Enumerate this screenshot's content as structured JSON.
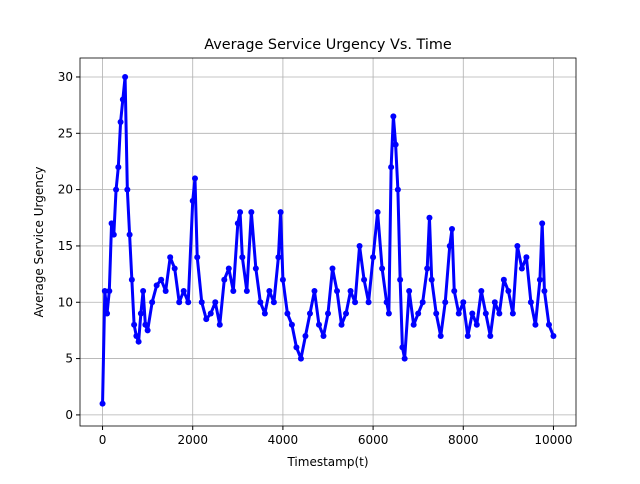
{
  "chart_data": {
    "type": "line",
    "title": "Average Service Urgency Vs. Time",
    "x_label": "Timestamp(t)",
    "y_label": "Average Service Urgency",
    "x": [
      0,
      50,
      100,
      150,
      200,
      250,
      300,
      350,
      400,
      450,
      500,
      550,
      600,
      650,
      700,
      750,
      800,
      850,
      900,
      950,
      1000,
      1100,
      1200,
      1300,
      1400,
      1500,
      1600,
      1700,
      1800,
      1900,
      2000,
      2050,
      2100,
      2200,
      2300,
      2400,
      2500,
      2600,
      2700,
      2800,
      2900,
      3000,
      3050,
      3100,
      3200,
      3300,
      3400,
      3500,
      3600,
      3700,
      3800,
      3900,
      3950,
      4000,
      4100,
      4200,
      4300,
      4400,
      4500,
      4600,
      4700,
      4800,
      4900,
      5000,
      5100,
      5200,
      5300,
      5400,
      5500,
      5600,
      5700,
      5800,
      5900,
      6000,
      6100,
      6200,
      6300,
      6350,
      6400,
      6450,
      6500,
      6550,
      6600,
      6650,
      6700,
      6800,
      6900,
      7000,
      7100,
      7200,
      7250,
      7300,
      7400,
      7500,
      7600,
      7700,
      7750,
      7800,
      7900,
      8000,
      8100,
      8200,
      8300,
      8400,
      8500,
      8600,
      8700,
      8800,
      8900,
      9000,
      9100,
      9200,
      9300,
      9400,
      9500,
      9600,
      9700,
      9750,
      9800,
      9900,
      10000
    ],
    "series": [
      {
        "color": "#0000ff",
        "values": [
          1,
          11,
          9,
          11,
          17,
          16,
          20,
          22,
          26,
          28,
          30,
          20,
          16,
          12,
          8,
          7,
          6.5,
          9,
          11,
          8,
          7.5,
          10,
          11.5,
          12,
          11,
          14,
          13,
          10,
          11,
          10,
          19,
          21,
          14,
          10,
          8.5,
          9,
          10,
          8,
          12,
          13,
          11,
          17,
          18,
          14,
          11,
          18,
          13,
          10,
          9,
          11,
          10,
          14,
          18,
          12,
          9,
          8,
          6,
          5,
          7,
          9,
          11,
          8,
          7,
          9,
          13,
          11,
          8,
          9,
          11,
          10,
          15,
          12,
          10,
          14,
          18,
          13,
          10,
          9,
          22,
          26.5,
          24,
          20,
          12,
          6,
          5,
          11,
          8,
          9,
          10,
          13,
          17.5,
          12,
          9,
          7,
          10,
          15,
          16.5,
          11,
          9,
          10,
          7,
          9,
          8,
          11,
          9,
          7,
          10,
          9,
          12,
          11,
          9,
          15,
          13,
          14,
          10,
          8,
          12,
          17,
          11,
          8,
          7
        ]
      }
    ],
    "xlim": [
      -500,
      10500
    ],
    "ylim": [
      -0.985,
      31.685
    ],
    "xticks": [
      0,
      2000,
      4000,
      6000,
      8000,
      10000
    ],
    "yticks": [
      0,
      5,
      10,
      15,
      20,
      25,
      30
    ],
    "grid": true
  }
}
